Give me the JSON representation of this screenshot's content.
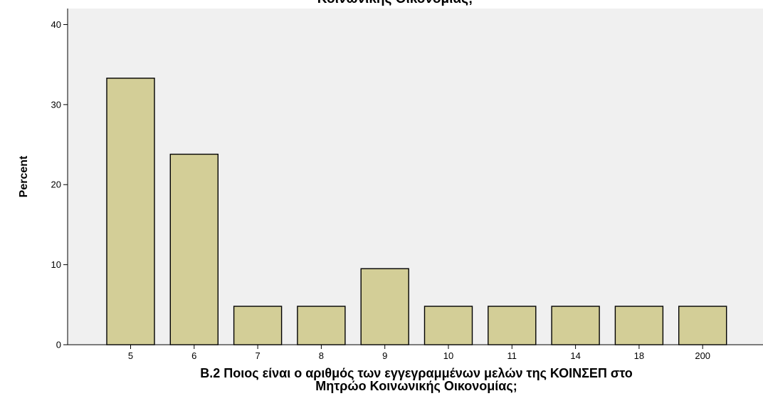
{
  "chart_data": {
    "type": "bar",
    "title": "Κοινωνικής Οικονομίας;",
    "categories": [
      "5",
      "6",
      "7",
      "8",
      "9",
      "10",
      "11",
      "14",
      "18",
      "200"
    ],
    "values": [
      33.3,
      23.8,
      4.8,
      4.8,
      9.5,
      4.8,
      4.8,
      4.8,
      4.8,
      4.8
    ],
    "ylabel": "Percent",
    "xlabel_lines": [
      "B.2 Ποιος είναι ο αριθμός των εγγεγραμμένων μελών της ΚΟΙΝΣΕΠ στο",
      "Μητρώο Κοινωνικής Οικονομίας;"
    ],
    "ylim": [
      0,
      42
    ],
    "yticks": [
      0,
      10,
      20,
      30,
      40
    ],
    "grid": false,
    "colors": {
      "plot_background": "#f0f0f0",
      "bar_fill": "#d3ce97",
      "bar_stroke": "#000000"
    }
  }
}
